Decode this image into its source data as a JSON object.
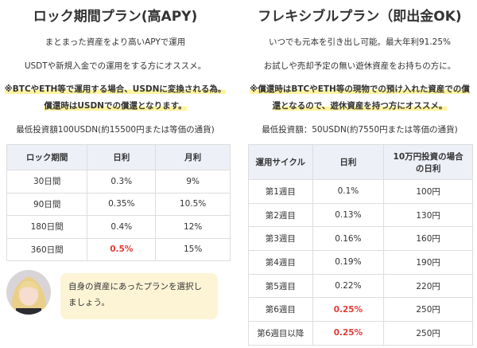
{
  "left": {
    "title": "ロック期間プラン(高APY)",
    "lines": [
      "まとまった資産をより高いAPYで運用",
      "USDTや新規入金での運用をする方にオススメ。"
    ],
    "highlight": [
      "※BTCやETH等で運用する場合、USDNに変換される為。",
      "償還時はUSDNでの償還となります。"
    ],
    "minimum": "最低投資額100USDN(約15500円または等価の通貨)",
    "table": {
      "header": [
        "ロック期間",
        "日利",
        "月利"
      ],
      "rows": [
        [
          "30日間",
          "0.3%",
          "9%"
        ],
        [
          "90日間",
          "0.35%",
          "10.5%"
        ],
        [
          "180日間",
          "0.4%",
          "12%"
        ],
        [
          "360日間",
          "0.5%",
          "15%"
        ]
      ]
    },
    "bubble": "自身の資産にあったプランを選択しましょう。"
  },
  "right": {
    "title": "フレキシブルプラン（即出金OK)",
    "lines": [
      "いつでも元本を引き出し可能。最大年利91.25%",
      "お試しや売却予定の無い遊休資産をお持ちの方に。"
    ],
    "highlight": [
      "※償還時はBTCやETH等の現物での預け入れた資産での償",
      "還となるので、遊休資産を持つ方にオススメ。"
    ],
    "minimum": "最低投資額：50USDN(約7550円または等価の通貨)",
    "table": {
      "header": [
        "運用サイクル",
        "日利",
        "10万円投資の場合の日利"
      ],
      "rows": [
        [
          "第1週目",
          "0.1%",
          "100円"
        ],
        [
          "第2週目",
          "0.13%",
          "130円"
        ],
        [
          "第3週目",
          "0.16%",
          "160円"
        ],
        [
          "第4週目",
          "0.19%",
          "190円"
        ],
        [
          "第5週目",
          "0.22%",
          "220円"
        ],
        [
          "第6週目",
          "0.25%",
          "250円"
        ],
        [
          "第6週目以降",
          "0.25%",
          "250円"
        ]
      ]
    }
  }
}
